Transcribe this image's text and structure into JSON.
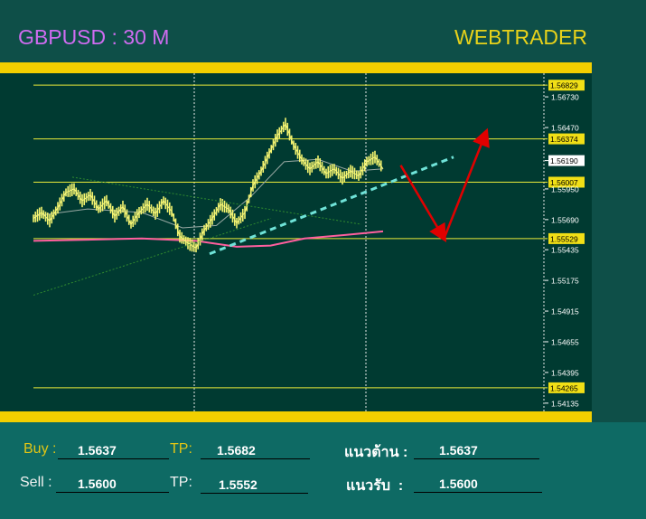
{
  "header": {
    "title": "GBPUSD : 30 M",
    "brand": "WEBTRADER"
  },
  "colors": {
    "title": "#cf6cf0",
    "brand": "#e8d21a",
    "bar": "#f3cf00",
    "chart_bg": "#003a31",
    "panel_bg": "#0e6a64"
  },
  "chart_data": {
    "type": "line",
    "title": "GBPUSD : 30 M",
    "ylim": [
      1.54065,
      1.5693
    ],
    "y_ticks": [
      "1.56730",
      "1.56470",
      "1.56190",
      "1.55950",
      "1.55690",
      "1.55435",
      "1.55175",
      "1.54915",
      "1.54655",
      "1.54395",
      "1.54135"
    ],
    "levels": [
      {
        "label": "1.56829",
        "value": 1.56829
      },
      {
        "label": "1.56374",
        "value": 1.56374
      },
      {
        "label": "1.56007",
        "value": 1.56007
      },
      {
        "label": "1.55529",
        "value": 1.55529
      },
      {
        "label": "1.54265",
        "value": 1.54265
      }
    ],
    "price_path": [
      [
        0,
        1.557
      ],
      [
        6,
        1.5575
      ],
      [
        12,
        1.5568
      ],
      [
        18,
        1.5579
      ],
      [
        24,
        1.5592
      ],
      [
        30,
        1.5595
      ],
      [
        36,
        1.5585
      ],
      [
        42,
        1.559
      ],
      [
        48,
        1.5578
      ],
      [
        54,
        1.5585
      ],
      [
        60,
        1.5572
      ],
      [
        66,
        1.558
      ],
      [
        72,
        1.5565
      ],
      [
        78,
        1.5575
      ],
      [
        84,
        1.5582
      ],
      [
        90,
        1.5574
      ],
      [
        96,
        1.5585
      ],
      [
        102,
        1.5576
      ],
      [
        108,
        1.5555
      ],
      [
        114,
        1.5549
      ],
      [
        120,
        1.5545
      ],
      [
        126,
        1.556
      ],
      [
        132,
        1.557
      ],
      [
        138,
        1.5582
      ],
      [
        144,
        1.5578
      ],
      [
        150,
        1.5566
      ],
      [
        156,
        1.5575
      ],
      [
        162,
        1.5598
      ],
      [
        168,
        1.561
      ],
      [
        174,
        1.5625
      ],
      [
        180,
        1.564
      ],
      [
        186,
        1.565
      ],
      [
        192,
        1.5632
      ],
      [
        198,
        1.562
      ],
      [
        204,
        1.5612
      ],
      [
        210,
        1.5618
      ],
      [
        216,
        1.5608
      ],
      [
        222,
        1.5612
      ],
      [
        228,
        1.5604
      ],
      [
        234,
        1.561
      ],
      [
        240,
        1.5606
      ],
      [
        246,
        1.5618
      ],
      [
        252,
        1.5622
      ],
      [
        258,
        1.5612
      ]
    ],
    "ma_short": [
      [
        0,
        1.5572
      ],
      [
        40,
        1.5578
      ],
      [
        80,
        1.5575
      ],
      [
        110,
        1.5562
      ],
      [
        135,
        1.5564
      ],
      [
        160,
        1.5588
      ],
      [
        185,
        1.5618
      ],
      [
        210,
        1.562
      ],
      [
        235,
        1.561
      ],
      [
        258,
        1.5612
      ]
    ],
    "ma_long": [
      [
        0,
        1.5551
      ],
      [
        40,
        1.5552
      ],
      [
        80,
        1.5553
      ],
      [
        120,
        1.5551
      ],
      [
        150,
        1.5546
      ],
      [
        175,
        1.5547
      ],
      [
        200,
        1.5553
      ],
      [
        230,
        1.5556
      ],
      [
        258,
        1.5559
      ]
    ],
    "trendline": {
      "from": [
        130,
        1.554
      ],
      "to": [
        310,
        1.5622
      ]
    },
    "forecast_arrows": [
      {
        "from": [
          271,
          1.5615
        ],
        "to": [
          303,
          1.5553
        ]
      },
      {
        "from": [
          303,
          1.5553
        ],
        "to": [
          334,
          1.5643
        ]
      }
    ],
    "session_dividers_px": [
      215,
      405,
      602
    ]
  },
  "orders": {
    "buy_label": "Buy :",
    "buy_value": "1.5637",
    "buy_tp_label": "TP:",
    "buy_tp_value": "1.5682",
    "sell_label": "Sell :",
    "sell_value": "1.5600",
    "sell_tp_label": "TP:",
    "sell_tp_value": "1.5552",
    "resistance_label": "แนวต้าน :",
    "resistance_value": "1.5637",
    "support_label": "แนวรับ  :",
    "support_value": "1.5600"
  }
}
